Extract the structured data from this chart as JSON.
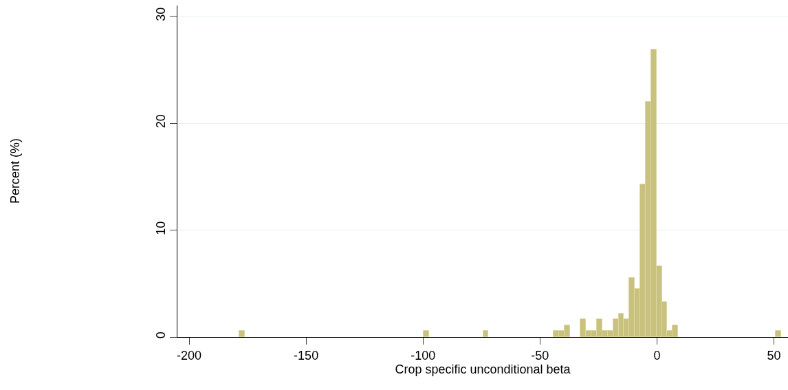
{
  "chart_data": {
    "type": "histogram",
    "xlabel": "Crop specific unconditional beta",
    "annotations": [
      "Percent (%)"
    ],
    "bins": [
      -178.5,
      -176.185,
      -173.87,
      -171.555,
      -169.24,
      -166.925,
      -164.61,
      -162.295,
      -159.98,
      -157.665,
      -155.35,
      -153.035,
      -150.72,
      -148.405,
      -146.09,
      -143.775,
      -141.46,
      -139.145,
      -136.83,
      -134.515,
      -132.2,
      -129.885,
      -127.57,
      -125.255,
      -122.94,
      -120.625,
      -118.31,
      -115.995,
      -113.68,
      -111.365,
      -109.05,
      -106.735,
      -104.42,
      -102.105,
      -99.79,
      -97.475,
      -95.16,
      -92.845,
      -90.53,
      -88.215,
      -85.9,
      -83.585,
      -81.27,
      -78.955,
      -76.64,
      -74.325,
      -72.01,
      -69.695,
      -67.38,
      -65.065,
      -62.75,
      -60.435,
      -58.12,
      -55.805,
      -53.49,
      -51.175,
      -48.86,
      -46.545,
      -44.23,
      -41.915,
      -39.6,
      -37.285,
      -34.97,
      -32.655,
      -30.34,
      -28.025,
      -25.71,
      -23.395,
      -21.08,
      -18.765,
      -16.45,
      -14.135,
      -11.82,
      -9.505,
      -7.19,
      -4.875,
      -2.56,
      -0.245,
      2.07,
      4.385,
      6.7,
      9.015,
      11.33,
      13.645,
      15.96,
      18.275,
      20.59,
      22.905,
      25.22,
      27.535,
      29.85,
      32.165,
      34.48,
      36.795,
      39.11,
      41.425,
      43.74,
      46.055,
      48.37,
      50.685,
      53.0
    ],
    "values": [
      0.55,
      0,
      0,
      0,
      0,
      0,
      0,
      0,
      0,
      0,
      0,
      0,
      0,
      0,
      0,
      0,
      0,
      0,
      0,
      0,
      0,
      0,
      0,
      0,
      0,
      0,
      0,
      0,
      0,
      0,
      0,
      0,
      0,
      0,
      0.55,
      0,
      0,
      0,
      0,
      0,
      0,
      0,
      0,
      0,
      0,
      0.55,
      0,
      0,
      0,
      0,
      0,
      0,
      0,
      0,
      0,
      0,
      0,
      0,
      0.55,
      0.55,
      1.1,
      0,
      0,
      1.7,
      0.55,
      0.55,
      1.7,
      0.55,
      0.55,
      1.7,
      2.2,
      1.7,
      5.5,
      4.5,
      14.3,
      22,
      26.9,
      6.6,
      3.3,
      0.55,
      1.1,
      0,
      0,
      0,
      0,
      0,
      0,
      0,
      0,
      0,
      0,
      0,
      0,
      0,
      0,
      0,
      0,
      0,
      0,
      0.55
    ],
    "color": "#c9c27e",
    "xlim": [
      -205,
      56
    ],
    "xticks": [
      -200,
      -150,
      -100,
      -50,
      0,
      50
    ],
    "ylim": [
      0,
      31
    ],
    "yticks": [
      0,
      10,
      20,
      30
    ],
    "grid": "y"
  }
}
